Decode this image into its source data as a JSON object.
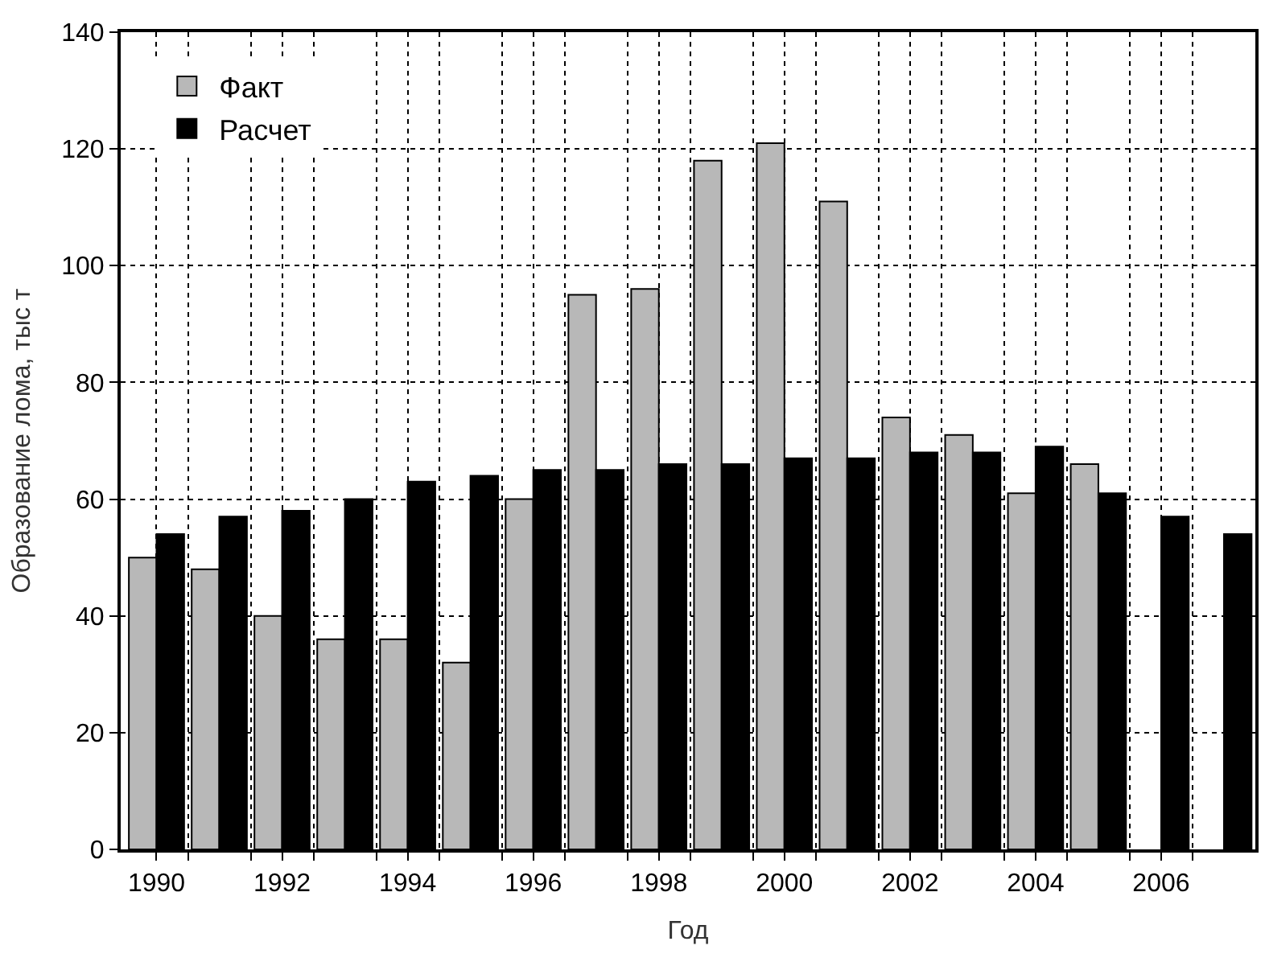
{
  "chart_data": {
    "type": "bar",
    "xlabel": "Год",
    "ylabel": "Образование лома, тыс т",
    "x": [
      1990,
      1991,
      1992,
      1993,
      1994,
      1995,
      1996,
      1997,
      1998,
      1999,
      2000,
      2001,
      2002,
      2003,
      2004,
      2005,
      2006,
      2007
    ],
    "series": [
      {
        "name": "Факт",
        "color": "#b8b8b8",
        "values": [
          50,
          48,
          40,
          36,
          36,
          32,
          60,
          95,
          96,
          118,
          121,
          111,
          74,
          71,
          61,
          66,
          null,
          null
        ]
      },
      {
        "name": "Расчет",
        "color": "#000000",
        "values": [
          54,
          57,
          58,
          60,
          63,
          64,
          65,
          65,
          66,
          66,
          67,
          67,
          68,
          68,
          69,
          61,
          57,
          54
        ]
      }
    ],
    "xlim": [
      1989.43,
      2007.5
    ],
    "xticks": [
      1990,
      {
        "value": 1990.5,
        "label": null
      },
      {
        "value": 1991.5,
        "label": null
      },
      1992,
      {
        "value": 1992.5,
        "label": null
      },
      {
        "value": 1993.5,
        "label": null
      },
      1994,
      {
        "value": 1994.5,
        "label": null
      },
      {
        "value": 1995.5,
        "label": null
      },
      1996,
      {
        "value": 1996.5,
        "label": null
      },
      {
        "value": 1997.5,
        "label": null
      },
      1998,
      {
        "value": 1998.5,
        "label": null
      },
      {
        "value": 1999.5,
        "label": null
      },
      2000,
      {
        "value": 2000.5,
        "label": null
      },
      {
        "value": 2001.5,
        "label": null
      },
      2002,
      {
        "value": 2002.5,
        "label": null
      },
      {
        "value": 2003.5,
        "label": null
      },
      2004,
      {
        "value": 2004.5,
        "label": null
      },
      {
        "value": 2005.5,
        "label": null
      },
      2006,
      {
        "value": 2006.5,
        "label": null
      }
    ],
    "ylim": [
      0,
      140
    ],
    "yticks": [
      0,
      20,
      40,
      60,
      80,
      100,
      120,
      140
    ],
    "grid": true,
    "legend": "top left"
  }
}
